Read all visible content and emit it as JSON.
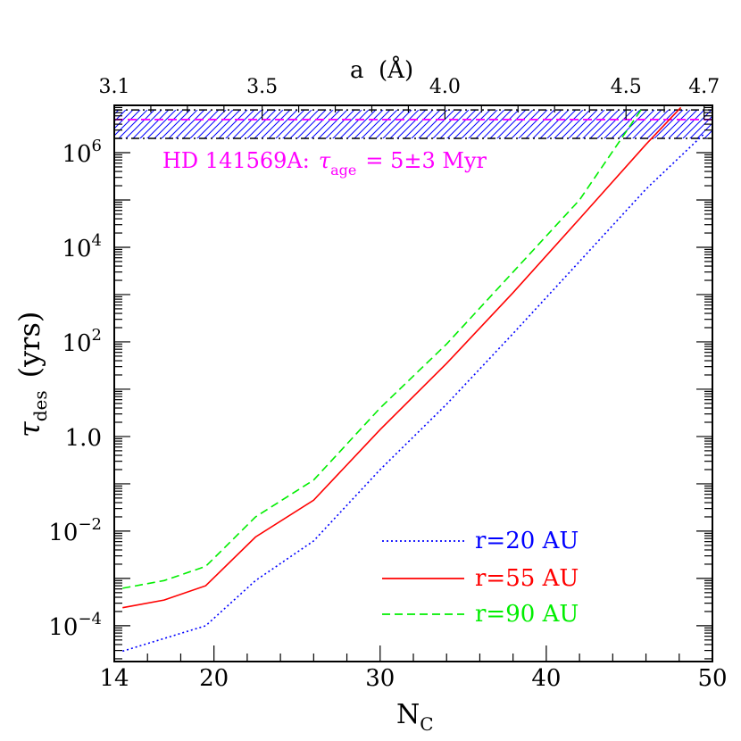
{
  "chart_data": {
    "type": "line",
    "xlabel": "N",
    "xlabel_sub": "C",
    "ylabel": "τ",
    "ylabel_sub": "des",
    "ylabel_unit": "(yrs)",
    "top_xlabel": "a  (Å)",
    "xlim": [
      14,
      50
    ],
    "ylim": [
      1.75e-05,
      10000000
    ],
    "yscale": "log",
    "x_ticks": [
      "14",
      "20",
      "30",
      "40",
      "50"
    ],
    "top_ticks": [
      {
        "x": 14,
        "label": "3.1"
      },
      {
        "x": 22.9,
        "label": "3.5"
      },
      {
        "x": 33.9,
        "label": "4.0"
      },
      {
        "x": 44.8,
        "label": "4.5"
      },
      {
        "x": 49.5,
        "label": "4.7"
      }
    ],
    "y_ticks": [
      {
        "value": 0.0001,
        "base": "10",
        "exp": "−4"
      },
      {
        "value": 0.01,
        "base": "10",
        "exp": "−2"
      },
      {
        "value": 1,
        "base": "1.0",
        "exp": ""
      },
      {
        "value": 100,
        "base": "10",
        "exp": "2"
      },
      {
        "value": 10000,
        "base": "10",
        "exp": "4"
      },
      {
        "value": 1000000,
        "base": "10",
        "exp": "6"
      }
    ],
    "band": {
      "label_prefix": "HD 141569A:",
      "label_symbol": "τ",
      "label_sub": "age",
      "label_suffix": "= 5±3 Myr",
      "center": 5000000,
      "lower": 2000000,
      "upper": 8000000,
      "color": "#ff00ff"
    },
    "series": [
      {
        "name": "r=20 AU",
        "color": "#0000ff",
        "dash": "dotted",
        "x": [
          14.5,
          19.5,
          22.5,
          26,
          30,
          34,
          38,
          42,
          46,
          49.5
        ],
        "y": [
          2.9e-05,
          0.0001,
          0.0009,
          0.0062,
          0.2,
          4.8,
          150,
          5000,
          170000,
          2500000
        ]
      },
      {
        "name": "r=55 AU",
        "color": "#ff0000",
        "dash": "solid",
        "x": [
          14.5,
          17,
          19.5,
          22.5,
          26,
          30,
          34,
          38,
          42,
          46,
          48.1
        ],
        "y": [
          0.00024,
          0.00035,
          0.0007,
          0.0075,
          0.045,
          1.4,
          35,
          1100,
          40000,
          1500000,
          9000000
        ]
      },
      {
        "name": "r=90 AU",
        "color": "#00ee00",
        "dash": "dashed",
        "x": [
          14.5,
          17,
          19.5,
          22.5,
          26,
          30,
          34,
          38,
          42,
          45.8
        ],
        "y": [
          0.00062,
          0.0009,
          0.0018,
          0.02,
          0.12,
          4,
          90,
          3000,
          100000,
          9000000
        ]
      }
    ]
  }
}
